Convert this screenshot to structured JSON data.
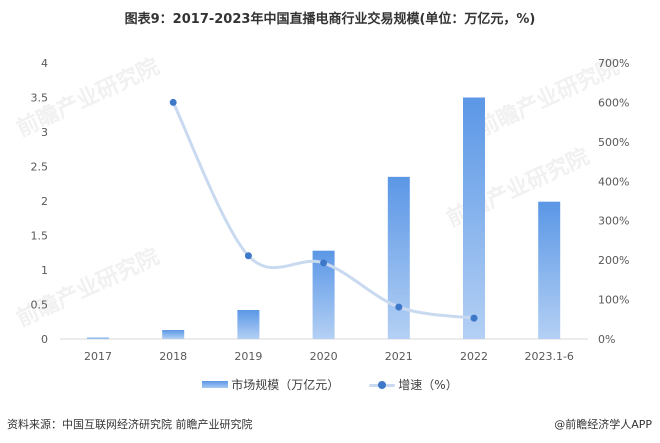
{
  "title": "图表9：2017-2023年中国直播电商行业交易规模(单位：万亿元，%)",
  "chart_data": {
    "type": "bar",
    "title": "图表9：2017-2023年中国直播电商行业交易规模(单位：万亿元，%)",
    "categories": [
      "2017",
      "2018",
      "2019",
      "2020",
      "2021",
      "2022",
      "2023.1-6"
    ],
    "series": [
      {
        "name": "市场规模（万亿元）",
        "type": "bar",
        "axis": "left",
        "values": [
          0.02,
          0.13,
          0.42,
          1.28,
          2.35,
          3.5,
          1.99
        ]
      },
      {
        "name": "增速（%）",
        "type": "line",
        "axis": "right",
        "values": [
          null,
          600,
          211,
          193,
          81,
          53,
          null
        ]
      }
    ],
    "xlabel": "",
    "ylabel": "",
    "y_left": {
      "ylim": [
        0,
        4
      ],
      "ticks": [
        "0",
        "0.5",
        "1",
        "1.5",
        "2",
        "2.5",
        "3",
        "3.5",
        "4"
      ]
    },
    "y_right": {
      "ylim": [
        0,
        700
      ],
      "ticks": [
        "0%",
        "100%",
        "200%",
        "300%",
        "400%",
        "500%",
        "600%",
        "700%"
      ]
    },
    "grid": false,
    "legend_position": "bottom"
  },
  "legend": {
    "bar_label": "市场规模（万亿元）",
    "line_label": "增速（%）"
  },
  "footer": {
    "source": "资料来源：中国互联网经济研究院 前瞻产业研究院",
    "credit": "@前瞻经济学人APP"
  },
  "colors": {
    "bar_top": "#5b97e6",
    "bar_bottom": "#b4d0f4",
    "line": "#c9daf0",
    "marker": "#3e78c9"
  },
  "watermark": "前瞻产业研究院"
}
